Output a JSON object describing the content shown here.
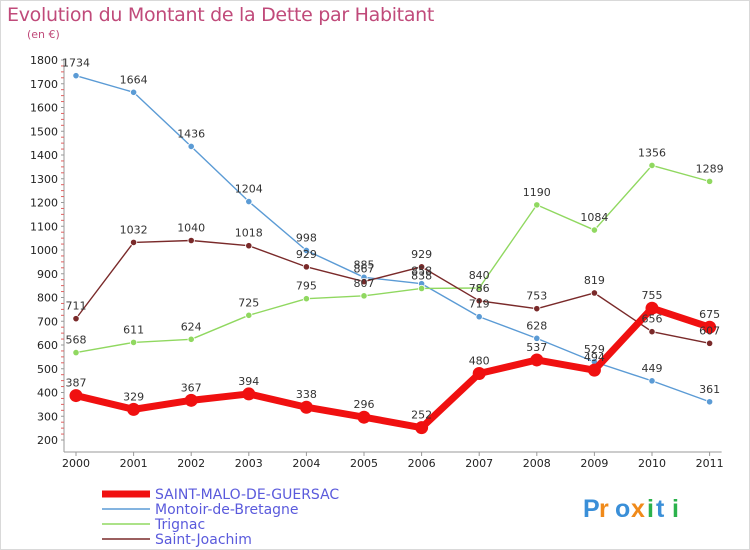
{
  "chart_data": {
    "type": "line",
    "title": "Evolution du Montant de la Dette par Habitant",
    "subtitle": "(en €)",
    "xlabel": "",
    "ylabel": "",
    "ylim": [
      200,
      1800
    ],
    "y_ticks": [
      200,
      300,
      400,
      500,
      600,
      700,
      800,
      900,
      1000,
      1100,
      1200,
      1300,
      1400,
      1500,
      1600,
      1700,
      1800
    ],
    "x": [
      "2000",
      "2001",
      "2002",
      "2003",
      "2004",
      "2005",
      "2006",
      "2007",
      "2008",
      "2009",
      "2010",
      "2011"
    ],
    "grid": false,
    "legend_position": "bottom-left",
    "series": [
      {
        "name": "Montoir-de-Bretagne",
        "color": "#5b9bd5",
        "values": [
          1734,
          1664,
          1436,
          1204,
          998,
          885,
          858,
          719,
          628,
          529,
          449,
          361
        ]
      },
      {
        "name": "Trignac",
        "color": "#90d860",
        "values": [
          568,
          611,
          624,
          725,
          795,
          807,
          838,
          840,
          1190,
          1084,
          1356,
          1289
        ]
      },
      {
        "name": "Saint-Joachim",
        "color": "#7a2a2a",
        "values": [
          711,
          1032,
          1040,
          1018,
          929,
          867,
          929,
          786,
          753,
          819,
          656,
          607
        ]
      },
      {
        "name": "SAINT-MALO-DE-GUERSAC",
        "color": "#f01010",
        "values": [
          387,
          329,
          367,
          394,
          338,
          296,
          252,
          480,
          537,
          494,
          755,
          675
        ]
      }
    ],
    "legend_order": [
      "SAINT-MALO-DE-GUERSAC",
      "Montoir-de-Bretagne",
      "Trignac",
      "Saint-Joachim"
    ],
    "emphasized_series": "SAINT-MALO-DE-GUERSAC"
  },
  "logo": {
    "text": "Proxiti"
  }
}
